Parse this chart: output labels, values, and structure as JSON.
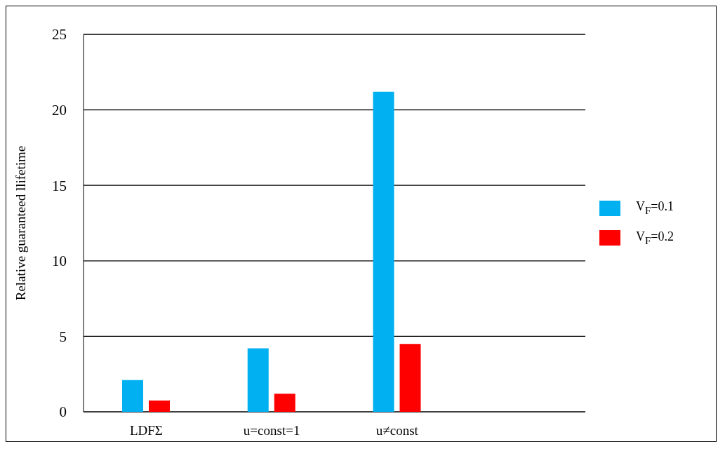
{
  "chart_data": {
    "type": "bar",
    "ylabel": "Relative guaranteed llifetime",
    "categories": [
      "LDFΣ",
      "u=const=1",
      "u≠const",
      null
    ],
    "series": [
      {
        "name": "V$_{F}$=0.1",
        "color": "#00b0f0",
        "values": [
          2.1,
          4.2,
          21.2,
          null
        ]
      },
      {
        "name": "V$_{F}$=0.2",
        "color": "#ff0000",
        "values": [
          0.75,
          1.2,
          4.5,
          null
        ]
      }
    ],
    "ylim": [
      0,
      25
    ],
    "yticks": [
      0,
      5,
      10,
      15,
      20,
      25
    ],
    "grid": "y",
    "legend": "right"
  }
}
